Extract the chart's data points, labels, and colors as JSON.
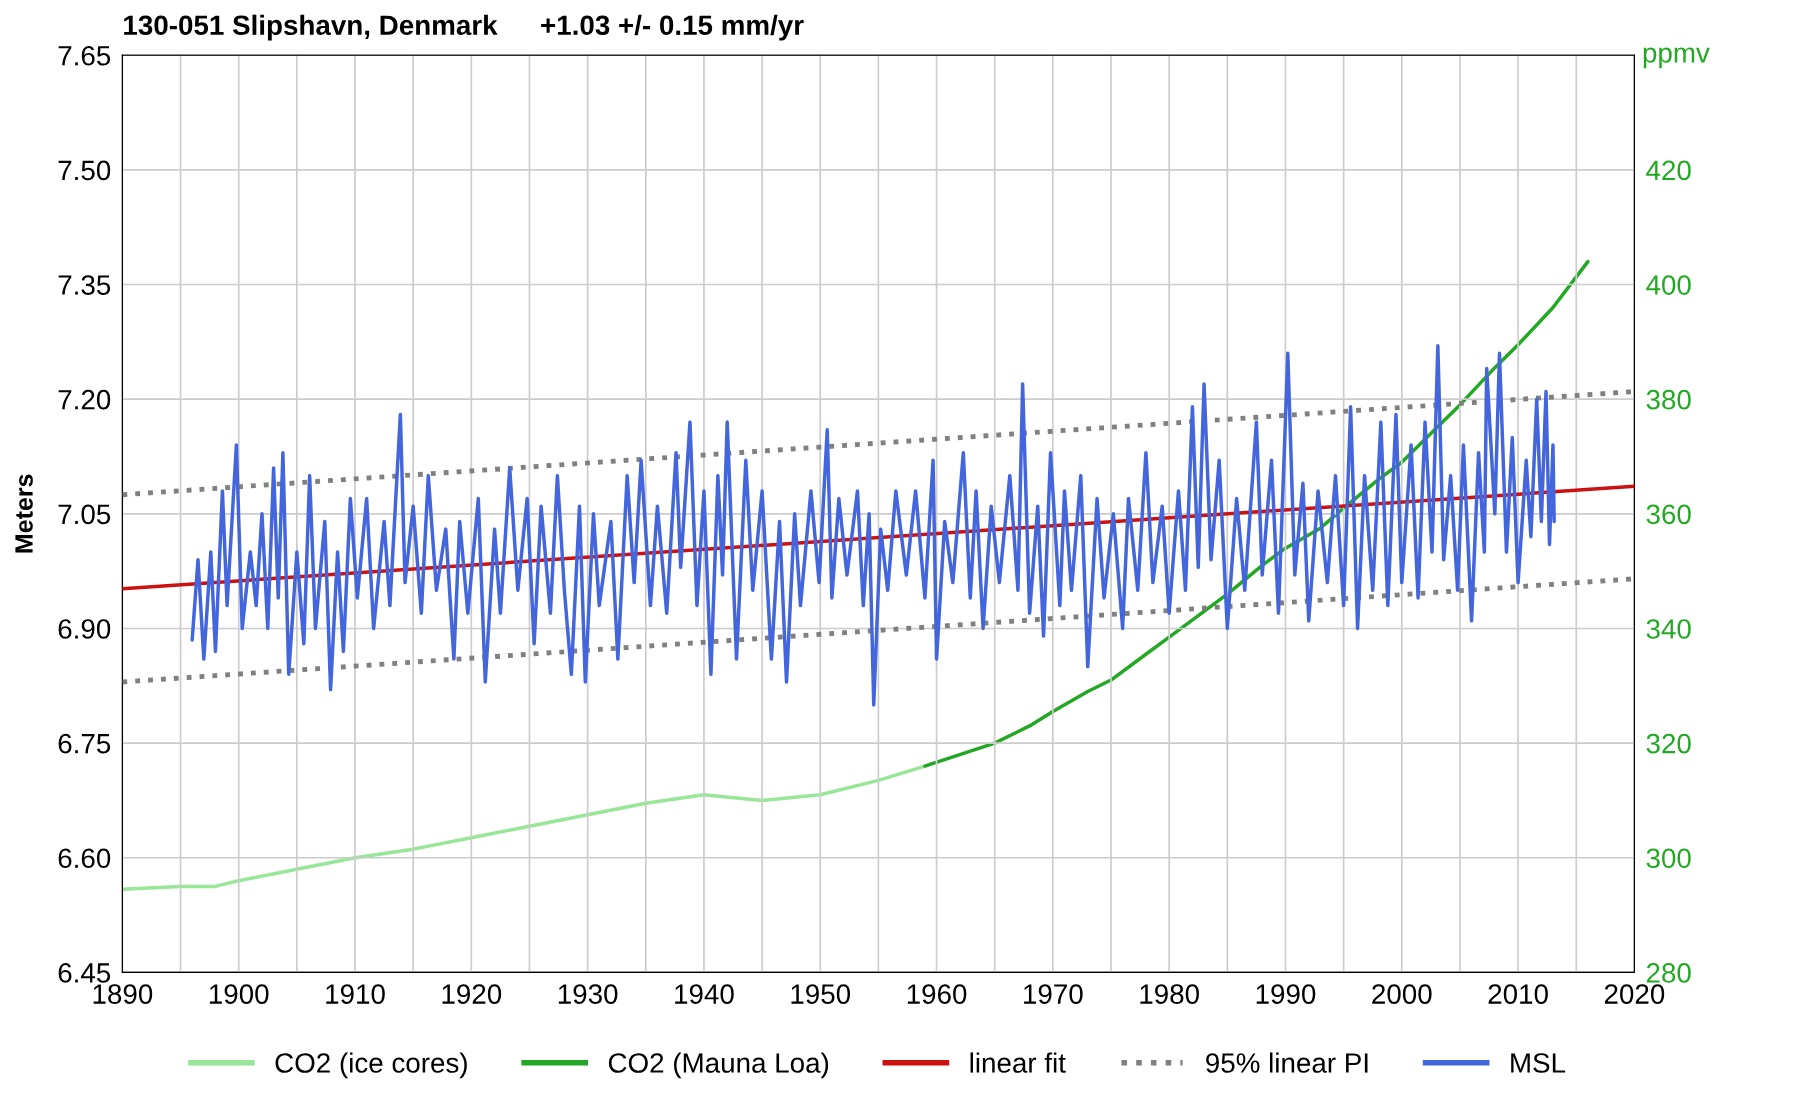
{
  "chart_data": {
    "type": "line",
    "title": "130-051 Slipshavn, Denmark",
    "subtitle": "+1.03 +/- 0.15 mm/yr",
    "ylabel": "Meters",
    "y2label": "ppmv",
    "xlim": [
      1890,
      2020
    ],
    "xticks": [
      1890,
      {
        "value": 1895,
        "label": null
      },
      1900,
      {
        "value": 1905,
        "label": null
      },
      1910,
      {
        "value": 1915,
        "label": null
      },
      1920,
      {
        "value": 1925,
        "label": null
      },
      1930,
      {
        "value": 1935,
        "label": null
      },
      1940,
      {
        "value": 1945,
        "label": null
      },
      1950,
      {
        "value": 1955,
        "label": null
      },
      1960,
      {
        "value": 1965,
        "label": null
      },
      1970,
      {
        "value": 1975,
        "label": null
      },
      1980,
      {
        "value": 1985,
        "label": null
      },
      1990,
      {
        "value": 1995,
        "label": null
      },
      2000,
      {
        "value": 2005,
        "label": null
      },
      2010,
      {
        "value": 2015,
        "label": null
      },
      2020
    ],
    "ylim": [
      6.45,
      7.65
    ],
    "yticks": [
      {
        "value": 6.45,
        "label": "6.45"
      },
      {
        "value": 6.6,
        "label": "6.60"
      },
      {
        "value": 6.75,
        "label": "6.75"
      },
      {
        "value": 6.9,
        "label": "6.90"
      },
      {
        "value": 7.05,
        "label": "7.05"
      },
      {
        "value": 7.2,
        "label": "7.20"
      },
      {
        "value": 7.35,
        "label": "7.35"
      },
      {
        "value": 7.5,
        "label": "7.50"
      },
      {
        "value": 7.65,
        "label": "7.65"
      }
    ],
    "y2lim": [
      280,
      440
    ],
    "y2ticks": [
      280,
      300,
      320,
      340,
      360,
      380,
      400,
      420
    ],
    "grid": true,
    "legend": "bottom",
    "marker": "none",
    "series": [
      {
        "name": "CO2 (ice cores)",
        "color": "#98e698",
        "axis": "y2",
        "x": [
          1890,
          1895,
          1898,
          1900,
          1905,
          1910,
          1915,
          1920,
          1925,
          1930,
          1935,
          1940,
          1945,
          1950,
          1955,
          1959
        ],
        "values": [
          294.5,
          295,
          295,
          296,
          298,
          300,
          301.5,
          303.5,
          305.5,
          307.5,
          309.5,
          311,
          310,
          311,
          313.5,
          316
        ]
      },
      {
        "name": "CO2 (Mauna Loa)",
        "color": "#22a822",
        "axis": "y2",
        "x": [
          1959,
          1962,
          1965,
          1968,
          1970,
          1973,
          1975,
          1978,
          1980,
          1983,
          1985,
          1988,
          1990,
          1993,
          1995,
          1998,
          2000,
          2003,
          2005,
          2008,
          2010,
          2013,
          2016
        ],
        "values": [
          316,
          318,
          320,
          323,
          325.5,
          329,
          331,
          335.5,
          338.5,
          343,
          346,
          351,
          354,
          357.5,
          361,
          366,
          369,
          375,
          379,
          385.5,
          389.5,
          396,
          404
        ]
      },
      {
        "name": "linear fit",
        "color": "#cc1111",
        "x": [
          1890,
          2020
        ],
        "values": [
          6.952,
          7.086
        ]
      },
      {
        "name": "95% linear PI",
        "color": "#808080",
        "line_style": "dotted",
        "x": [
          1890,
          2020
        ],
        "values": [
          7.075,
          7.21
        ]
      },
      {
        "color": "#808080",
        "line_style": "dotted",
        "x": [
          1890,
          2020
        ],
        "values": [
          6.83,
          6.965
        ]
      },
      {
        "name": "MSL",
        "color": "#4466dd",
        "x": [
          1896.0,
          1896.5,
          1897,
          1897.6,
          1898,
          1898.6,
          1899,
          1899.8,
          1900.3,
          1901,
          1901.5,
          1902,
          1902.5,
          1903,
          1903.4,
          1903.8,
          1904.3,
          1905,
          1905.6,
          1906.1,
          1906.6,
          1907.4,
          1907.9,
          1908.5,
          1909,
          1909.6,
          1910.2,
          1911,
          1911.6,
          1912.5,
          1913,
          1913.9,
          1914.3,
          1915,
          1915.7,
          1916.3,
          1917,
          1917.8,
          1918.5,
          1919,
          1919.7,
          1920.6,
          1921.2,
          1922,
          1922.5,
          1923.3,
          1924,
          1924.8,
          1925.4,
          1926,
          1926.8,
          1927.4,
          1928,
          1928.6,
          1929.3,
          1929.8,
          1930.5,
          1931,
          1932,
          1932.6,
          1933.4,
          1934,
          1934.6,
          1935.4,
          1936,
          1936.8,
          1937.6,
          1938,
          1938.8,
          1939.4,
          1940,
          1940.6,
          1941.2,
          1941.6,
          1942,
          1942.8,
          1943.6,
          1944.2,
          1945,
          1945.8,
          1946.5,
          1947.1,
          1947.8,
          1948.3,
          1949.2,
          1949.9,
          1950.6,
          1951,
          1951.6,
          1952.3,
          1953.2,
          1953.7,
          1954.2,
          1954.6,
          1955.2,
          1955.8,
          1956.5,
          1957.4,
          1958.2,
          1959,
          1959.7,
          1960,
          1960.7,
          1961.4,
          1962.3,
          1962.9,
          1963.4,
          1964,
          1964.7,
          1965.4,
          1966.3,
          1967,
          1967.4,
          1968,
          1968.7,
          1969.2,
          1969.8,
          1970.6,
          1971,
          1971.6,
          1972.4,
          1973,
          1973.8,
          1974.4,
          1975.2,
          1976,
          1976.5,
          1977.3,
          1978,
          1978.6,
          1979.4,
          1980,
          1980.8,
          1981.4,
          1982,
          1982.5,
          1983,
          1983.6,
          1984.3,
          1985,
          1985.8,
          1986.5,
          1987.5,
          1988,
          1988.8,
          1989.4,
          1990.2,
          1990.8,
          1991.5,
          1992,
          1992.8,
          1993.6,
          1994.3,
          1995,
          1995.6,
          1996.2,
          1996.8,
          1997.5,
          1998.2,
          1998.8,
          1999.5,
          2000,
          2000.8,
          2001.4,
          2002,
          2002.6,
          2003.1,
          2003.6,
          2004.2,
          2004.8,
          2005.3,
          2006,
          2006.6,
          2007.1,
          2007.3,
          2008,
          2008.4,
          2009,
          2009.5,
          2010,
          2010.7,
          2011.1,
          2011.6,
          2012,
          2012.4,
          2012.7,
          2013,
          2013.1
        ],
        "values": [
          6.885,
          6.99,
          6.86,
          7.0,
          6.87,
          7.08,
          6.93,
          7.14,
          6.9,
          7.0,
          6.93,
          7.05,
          6.9,
          7.11,
          6.94,
          7.13,
          6.84,
          7.0,
          6.88,
          7.1,
          6.9,
          7.04,
          6.82,
          7.0,
          6.87,
          7.07,
          6.94,
          7.07,
          6.9,
          7.04,
          6.93,
          7.18,
          6.96,
          7.06,
          6.92,
          7.1,
          6.95,
          7.03,
          6.86,
          7.04,
          6.92,
          7.07,
          6.83,
          7.03,
          6.92,
          7.11,
          6.95,
          7.07,
          6.88,
          7.06,
          6.92,
          7.1,
          6.95,
          6.84,
          7.06,
          6.83,
          7.05,
          6.93,
          7.04,
          6.86,
          7.1,
          6.96,
          7.12,
          6.93,
          7.06,
          6.92,
          7.13,
          6.98,
          7.17,
          6.93,
          7.08,
          6.84,
          7.1,
          6.97,
          7.17,
          6.86,
          7.12,
          6.95,
          7.08,
          6.86,
          7.04,
          6.83,
          7.05,
          6.93,
          7.08,
          6.96,
          7.16,
          6.94,
          7.07,
          6.97,
          7.08,
          6.93,
          7.05,
          6.8,
          7.03,
          6.95,
          7.08,
          6.97,
          7.08,
          6.94,
          7.12,
          6.86,
          7.04,
          6.96,
          7.13,
          6.94,
          7.08,
          6.9,
          7.06,
          6.96,
          7.1,
          6.95,
          7.22,
          6.92,
          7.06,
          6.89,
          7.13,
          6.93,
          7.08,
          6.95,
          7.1,
          6.85,
          7.07,
          6.94,
          7.05,
          6.9,
          7.07,
          6.95,
          7.13,
          6.96,
          7.06,
          6.92,
          7.08,
          6.95,
          7.19,
          6.98,
          7.22,
          6.99,
          7.12,
          6.9,
          7.07,
          6.95,
          7.17,
          6.97,
          7.12,
          6.92,
          7.26,
          6.97,
          7.09,
          6.91,
          7.08,
          6.96,
          7.1,
          6.93,
          7.19,
          6.9,
          7.1,
          6.95,
          7.17,
          6.93,
          7.18,
          6.96,
          7.14,
          6.94,
          7.17,
          7.0,
          7.27,
          6.99,
          7.1,
          6.95,
          7.14,
          6.91,
          7.13,
          7.0,
          7.24,
          7.05,
          7.26,
          7.0,
          7.15,
          6.96,
          7.12,
          7.02,
          7.2,
          7.04,
          7.21,
          7.01,
          7.14,
          7.04
        ]
      }
    ]
  }
}
